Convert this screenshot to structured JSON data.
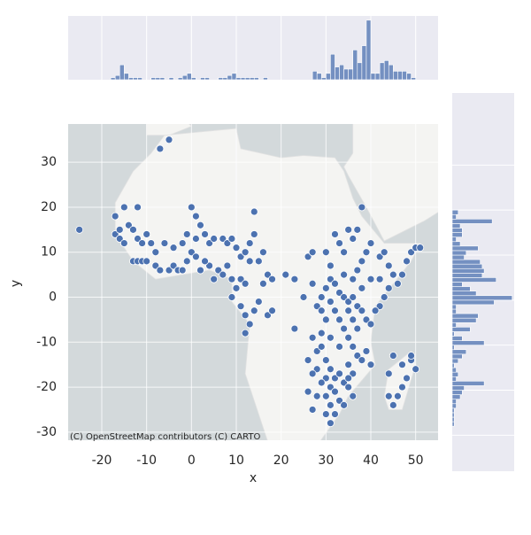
{
  "chart_data": {
    "type": "scatter",
    "xlabel": "x",
    "ylabel": "y",
    "attribution": "(C) OpenStreetMap contributors (C) CARTO",
    "color": "#4c72b0",
    "grid": true,
    "xlim": [
      -27.5,
      55
    ],
    "ylim": [
      -31.8,
      38.5
    ],
    "xticks": [
      -20,
      -10,
      0,
      10,
      20,
      30,
      40,
      50
    ],
    "yticks": [
      -30,
      -20,
      -10,
      0,
      10,
      20,
      30
    ],
    "x": [
      -17,
      -16,
      -16,
      -15,
      -14,
      -13,
      -12,
      -11,
      -10,
      -9,
      -13,
      -12,
      -11,
      -8,
      -7,
      -5,
      -4,
      -3,
      -2,
      -1,
      0,
      1,
      0,
      1,
      2,
      3,
      4,
      5,
      7,
      8,
      9,
      10,
      11,
      12,
      13,
      14,
      13,
      8,
      6,
      4,
      2,
      3,
      -8,
      -6,
      -4,
      -2,
      -1,
      1,
      -7,
      -5,
      -15,
      -12,
      -25,
      -17,
      -10,
      5,
      7,
      9,
      10,
      11,
      12,
      9,
      11,
      12,
      13,
      14,
      15,
      16,
      17,
      18,
      15,
      16,
      14,
      21,
      23,
      12,
      17,
      18,
      23,
      25,
      26,
      27,
      28,
      29,
      30,
      31,
      32,
      33,
      34,
      35,
      36,
      37,
      38,
      39,
      40,
      31,
      32,
      33,
      34,
      35,
      36,
      37,
      30,
      29,
      28,
      30,
      31,
      32,
      33,
      34,
      35,
      31,
      30,
      29,
      28,
      27,
      26,
      28,
      30,
      31,
      32,
      31,
      33,
      35,
      36,
      38,
      39,
      40,
      37,
      38,
      39,
      40,
      36,
      33,
      32,
      34,
      35,
      37,
      38,
      42,
      43,
      44,
      45,
      46,
      47,
      48,
      49,
      50,
      51,
      44,
      43,
      42,
      41,
      42,
      40,
      38,
      36,
      34,
      45,
      47,
      48,
      49,
      47,
      46,
      45,
      44,
      44,
      49,
      50,
      36,
      37,
      35,
      33,
      31,
      29,
      27,
      26,
      32,
      34,
      36,
      35,
      27,
      30,
      29,
      31,
      30,
      27
    ],
    "y": [
      14,
      15,
      13,
      12,
      16,
      15,
      13,
      12,
      14,
      12,
      8,
      8,
      8,
      7,
      6,
      6,
      7,
      6,
      6,
      8,
      10,
      9,
      20,
      18,
      16,
      14,
      12,
      13,
      13,
      12,
      13,
      11,
      9,
      10,
      12,
      14,
      8,
      7,
      6,
      7,
      6,
      8,
      10,
      12,
      11,
      12,
      14,
      13,
      33,
      35,
      20,
      20,
      15,
      18,
      8,
      4,
      5,
      4,
      2,
      4,
      3,
      0,
      -2,
      -4,
      -6,
      -3,
      -1,
      3,
      5,
      4,
      8,
      10,
      19,
      5,
      4,
      -8,
      -4,
      -3,
      -7,
      0,
      9,
      3,
      -2,
      0,
      2,
      4,
      3,
      1,
      0,
      -1,
      0,
      -2,
      -3,
      -5,
      -6,
      -1,
      -3,
      -5,
      -7,
      -9,
      -11,
      -13,
      -5,
      -8,
      -12,
      -14,
      -16,
      -18,
      -17,
      -19,
      -20,
      -20,
      -18,
      -19,
      -16,
      -17,
      -21,
      -22,
      -22,
      -24,
      -26,
      -28,
      -23,
      -15,
      -17,
      -14,
      -12,
      -15,
      6,
      8,
      10,
      12,
      13,
      12,
      14,
      10,
      15,
      15,
      20,
      9,
      10,
      7,
      5,
      3,
      5,
      8,
      10,
      11,
      11,
      2,
      0,
      -2,
      -3,
      4,
      4,
      2,
      4,
      5,
      -13,
      -15,
      -18,
      -14,
      -20,
      -22,
      -24,
      -22,
      -17,
      -13,
      -16,
      -5,
      -7,
      -3,
      -11,
      -9,
      -11,
      -9,
      -14,
      -21,
      -24,
      -22,
      -18,
      -25,
      -26,
      -3,
      7,
      10,
      10
    ],
    "marginal_x": {
      "ylim": [
        0,
        30
      ],
      "bins": [
        -18,
        -17,
        -16,
        -15,
        -14,
        -13,
        -12,
        -11,
        -10,
        -9,
        -8,
        -7,
        -6,
        -5,
        -4,
        -3,
        -2,
        -1,
        0,
        1,
        2,
        3,
        4,
        5,
        6,
        7,
        8,
        9,
        10,
        11,
        12,
        13,
        14,
        15,
        16,
        17,
        18,
        19,
        20,
        21,
        22,
        23,
        24,
        25,
        26,
        27,
        28,
        29,
        30,
        31,
        32,
        33,
        34,
        35,
        36,
        37,
        38,
        39,
        40,
        41,
        42,
        43,
        44,
        45,
        46,
        47,
        48,
        49,
        50
      ],
      "counts": [
        1,
        2,
        7,
        3,
        1,
        1,
        1,
        0,
        0,
        1,
        1,
        1,
        0,
        1,
        0,
        1,
        2,
        3,
        1,
        0,
        1,
        1,
        0,
        0,
        1,
        1,
        2,
        3,
        1,
        1,
        1,
        1,
        1,
        0,
        1,
        0,
        0,
        0,
        0,
        0,
        0,
        0,
        0,
        0,
        0,
        4,
        3,
        1,
        3,
        12,
        6,
        7,
        5,
        5,
        14,
        8,
        16,
        28,
        3,
        3,
        8,
        9,
        7,
        4,
        4,
        4,
        3,
        1
      ]
    },
    "marginal_y": {
      "xlim": [
        0,
        31
      ],
      "ylim": [
        -38,
        46
      ],
      "bins": [
        -30,
        -29,
        -28,
        -27,
        -26,
        -25,
        -24,
        -23,
        -22,
        -21,
        -20,
        -19,
        -18,
        -17,
        -16,
        -15,
        -14,
        -13,
        -12,
        -11,
        -10,
        -9,
        -8,
        -7,
        -6,
        -5,
        -4,
        -3,
        -2,
        -1,
        0,
        1,
        2,
        3,
        4,
        5,
        6,
        7,
        8,
        9,
        10,
        11,
        12,
        13,
        14,
        15,
        16,
        17,
        18,
        19,
        20
      ],
      "counts": [
        0,
        0,
        1,
        1,
        1,
        1,
        2,
        2,
        4,
        5,
        6,
        16,
        2,
        3,
        2,
        1,
        3,
        5,
        7,
        1,
        16,
        5,
        1,
        9,
        2,
        12,
        13,
        2,
        2,
        21,
        30,
        12,
        9,
        5,
        22,
        15,
        16,
        15,
        14,
        6,
        7,
        13,
        4,
        2,
        5,
        5,
        4,
        20,
        2,
        3
      ]
    }
  }
}
